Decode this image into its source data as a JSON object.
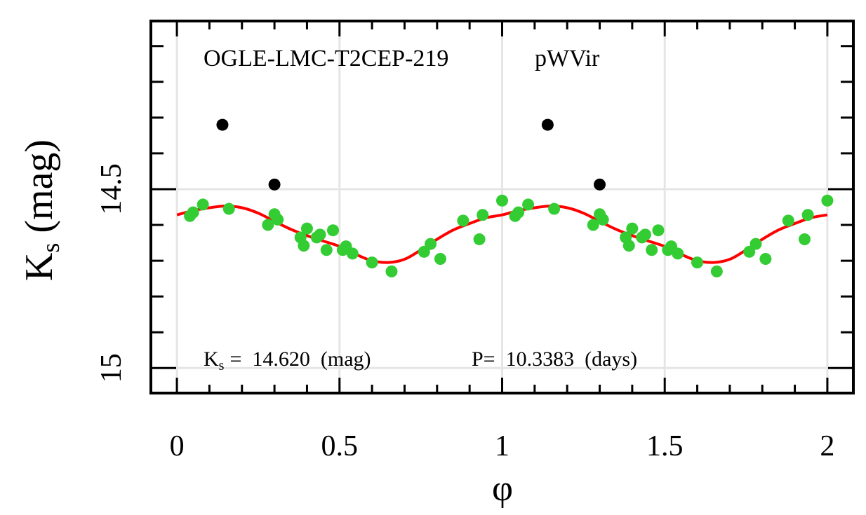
{
  "chart_data": {
    "type": "scatter",
    "star_name": "OGLE-LMC-T2CEP-219",
    "class_label": "pWVir",
    "xlabel": "φ",
    "ylabel_main": "K",
    "ylabel_sub": "s",
    "ylabel_unit": "(mag)",
    "xlim": [
      -0.08,
      2.08
    ],
    "ylim": [
      15.07,
      14.03
    ],
    "y_inverted": true,
    "grid": true,
    "x_ticks": [
      {
        "value": 0,
        "label": "0"
      },
      {
        "value": 0.5,
        "label": "0.5"
      },
      {
        "value": 1,
        "label": "1"
      },
      {
        "value": 1.5,
        "label": "1.5"
      },
      {
        "value": 2,
        "label": "2"
      }
    ],
    "y_ticks": [
      {
        "value": 14.5,
        "label": "14.5"
      },
      {
        "value": 15,
        "label": "15"
      }
    ],
    "y_minor_ticks": [
      14.1,
      14.2,
      14.3,
      14.4,
      14.6,
      14.7,
      14.8,
      14.9
    ],
    "x_minor_ticks": [
      0.1,
      0.2,
      0.3,
      0.4,
      0.6,
      0.7,
      0.8,
      0.9,
      1.1,
      1.2,
      1.3,
      1.4,
      1.6,
      1.7,
      1.8,
      1.9
    ],
    "stats": {
      "mag_label_main": "K",
      "mag_label_sub": "s",
      "mag_text": "=  14.620  (mag)",
      "period_text": "P=  10.3383  (days)"
    },
    "colors": {
      "good_points": "#33cc33",
      "outliers": "#000000",
      "fit": "#ff0000",
      "grid": "#e5e5e5",
      "axes": "#000000"
    },
    "series": [
      {
        "name": "good",
        "phase": [
          0.04,
          0.05,
          0.08,
          0.16,
          0.28,
          0.31,
          0.3,
          0.38,
          0.4,
          0.39,
          0.44,
          0.43,
          0.46,
          0.48,
          0.51,
          0.52,
          0.54,
          0.6,
          0.66,
          0.76,
          0.78,
          0.81,
          0.88,
          0.94,
          0.93,
          1.0
        ],
        "mag": [
          14.575,
          14.565,
          14.543,
          14.555,
          14.6,
          14.585,
          14.57,
          14.635,
          14.61,
          14.658,
          14.627,
          14.635,
          14.67,
          14.615,
          14.67,
          14.66,
          14.68,
          14.705,
          14.73,
          14.675,
          14.653,
          14.695,
          14.588,
          14.572,
          14.64,
          14.532
        ]
      },
      {
        "name": "outliers",
        "phase": [
          0.14,
          0.3
        ],
        "mag": [
          14.32,
          14.487
        ]
      },
      {
        "name": "fit",
        "phase": [
          0.0,
          0.05,
          0.1,
          0.15,
          0.2,
          0.25,
          0.3,
          0.35,
          0.4,
          0.45,
          0.5,
          0.55,
          0.6,
          0.65,
          0.7,
          0.75,
          0.8,
          0.85,
          0.9,
          0.95,
          1.0
        ],
        "mag": [
          14.572,
          14.56,
          14.552,
          14.547,
          14.552,
          14.567,
          14.59,
          14.612,
          14.63,
          14.645,
          14.66,
          14.682,
          14.7,
          14.705,
          14.696,
          14.67,
          14.64,
          14.614,
          14.596,
          14.58,
          14.572
        ]
      }
    ]
  }
}
